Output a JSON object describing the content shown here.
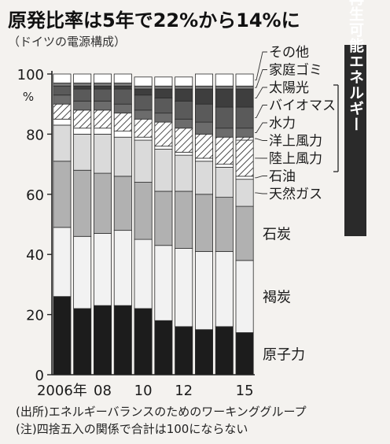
{
  "title": "原発比率は5年で22%から14%に",
  "subtitle": "（ドイツの電源構成）",
  "source_note": "(出所)エネルギーバランスのためのワーキンググループ",
  "rounding_note": "(注)四捨五入の関係で合計は100にならない",
  "renewables_label": "再生可能エネルギー",
  "chart_data": {
    "type": "bar",
    "stacked": true,
    "title": "原発比率は5年で22%から14%に",
    "subtitle": "（ドイツの電源構成）",
    "ylabel": "%",
    "ylim": [
      0,
      100
    ],
    "yticks": [
      0,
      20,
      40,
      60,
      80,
      100
    ],
    "categories": [
      "2006年",
      "07",
      "08",
      "09",
      "10",
      "11",
      "12",
      "13",
      "14",
      "15"
    ],
    "xtick_labels": [
      "2006年",
      "",
      "08",
      "",
      "10",
      "",
      "12",
      "",
      "",
      "15"
    ],
    "series": [
      {
        "name": "原子力",
        "values": [
          26,
          22,
          23,
          23,
          22,
          18,
          16,
          15,
          16,
          14
        ],
        "color": "#1c1c1c",
        "pattern": "solid"
      },
      {
        "name": "褐炭",
        "values": [
          23,
          24,
          24,
          25,
          23,
          25,
          26,
          26,
          25,
          24
        ],
        "color": "#f2f2f2",
        "pattern": "solid"
      },
      {
        "name": "石炭",
        "values": [
          22,
          22,
          20,
          18,
          19,
          18,
          19,
          19,
          18,
          18
        ],
        "color": "#b1b1b1",
        "pattern": "solid"
      },
      {
        "name": "天然ガス",
        "values": [
          12,
          12,
          13,
          13,
          14,
          14,
          12,
          11,
          10,
          9
        ],
        "color": "#dadada",
        "pattern": "solid"
      },
      {
        "name": "石油",
        "values": [
          2,
          2,
          2,
          2,
          1,
          1,
          1,
          1,
          1,
          1
        ],
        "color": "#ffffff",
        "pattern": "solid"
      },
      {
        "name": "陸上風力",
        "values": [
          5,
          6,
          6,
          6,
          6,
          8,
          8,
          8,
          9,
          12
        ],
        "color": "#ffffff",
        "pattern": "hatch"
      },
      {
        "name": "洋上風力",
        "values": [
          0,
          0,
          0,
          0,
          0,
          0,
          0,
          0,
          0,
          1
        ],
        "color": "#ffffff",
        "pattern": "hatch"
      },
      {
        "name": "水力",
        "values": [
          3,
          3,
          3,
          3,
          3,
          3,
          3,
          4,
          3,
          3
        ],
        "color": "#6c6c6c",
        "pattern": "solid"
      },
      {
        "name": "バイオマス",
        "values": [
          3,
          4,
          4,
          5,
          5,
          5,
          6,
          6,
          7,
          7
        ],
        "color": "#5a5a5a",
        "pattern": "solid"
      },
      {
        "name": "太陽光",
        "values": [
          0,
          1,
          1,
          1,
          2,
          3,
          4,
          5,
          6,
          6
        ],
        "color": "#3e3e3e",
        "pattern": "solid"
      },
      {
        "name": "家庭ゴミ",
        "values": [
          1,
          1,
          1,
          1,
          1,
          1,
          1,
          1,
          1,
          1
        ],
        "color": "#7a7a7a",
        "pattern": "solid"
      },
      {
        "name": "その他",
        "values": [
          3,
          3,
          3,
          3,
          3,
          3,
          3,
          4,
          4,
          4
        ],
        "color": "#ffffff",
        "pattern": "solid"
      }
    ],
    "inline_labels": [
      "原子力",
      "褐炭",
      "石炭"
    ],
    "legend": [
      "その他",
      "家庭ゴミ",
      "太陽光",
      "バイオマス",
      "水力",
      "洋上風力",
      "陸上風力",
      "石油",
      "天然ガス"
    ],
    "legend_position": "right",
    "renewables_bracket": {
      "label": "再生可能エネルギー",
      "members": [
        "家庭ゴミ",
        "太陽光",
        "バイオマス",
        "水力",
        "洋上風力",
        "陸上風力"
      ]
    }
  }
}
